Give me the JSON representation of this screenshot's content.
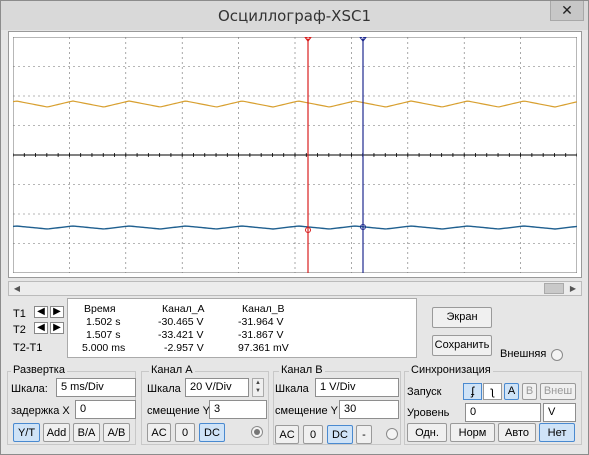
{
  "window": {
    "title": "Осциллограф-XSC1",
    "close_glyph": "✕"
  },
  "scope": {
    "colors": {
      "background": "#ffffff",
      "grid": "#6f6f6f",
      "axis": "#000000",
      "channel_a": "#d8a030",
      "channel_b": "#1f5f8f",
      "cursor_1": "#d81e1e",
      "cursor_2": "#1f2a8f"
    },
    "cursor_labels": [
      "1",
      "2"
    ]
  },
  "cursor_rows": {
    "t1": "T1",
    "t2": "T2",
    "dt": "T2-T1"
  },
  "measurements": {
    "headers": [
      "Время",
      "Канал_A",
      "Канал_B"
    ],
    "rows": [
      [
        "1.502 s",
        "-30.465 V",
        "-31.964 V"
      ],
      [
        "1.507 s",
        "-33.421 V",
        "-31.867 V"
      ],
      [
        "5.000 ms",
        "-2.957 V",
        "97.361 mV"
      ]
    ]
  },
  "right_panel": {
    "screen_button": "Экран",
    "save_button": "Сохранить",
    "external_label": "Внешняя"
  },
  "timebase": {
    "title": "Развертка",
    "scale_label": "Шкала:",
    "scale_value": "5 ms/Div",
    "delay_label": "задержка X",
    "delay_value": "0",
    "buttons": [
      "Y/T",
      "Add",
      "B/A",
      "A/B"
    ],
    "selected": "Y/T"
  },
  "channel_a": {
    "title": "Канал A",
    "scale_label": "Шкала",
    "scale_value": "20  V/Div",
    "offset_label": "смещение Y",
    "offset_value": "3",
    "buttons": [
      "AC",
      "0",
      "DC"
    ],
    "selected": "DC"
  },
  "channel_b": {
    "title": "Канал B",
    "scale_label": "Шкала",
    "scale_value": "1  V/Div",
    "offset_label": "смещение Y",
    "offset_value": "30",
    "buttons": [
      "AC",
      "0",
      "DC",
      "-"
    ],
    "selected": "DC"
  },
  "trigger": {
    "title": "Синхронизация",
    "edge_label": "Запуск",
    "edge_buttons": [
      "ʄ",
      "ʅ"
    ],
    "source_buttons": [
      "A",
      "B",
      "Внеш"
    ],
    "source_selected": "A",
    "level_label": "Уровень",
    "level_value": "0",
    "level_unit": "V",
    "mode_buttons": [
      "Одн.",
      "Норм",
      "Авто",
      "Нет"
    ],
    "mode_selected": "Нет"
  }
}
